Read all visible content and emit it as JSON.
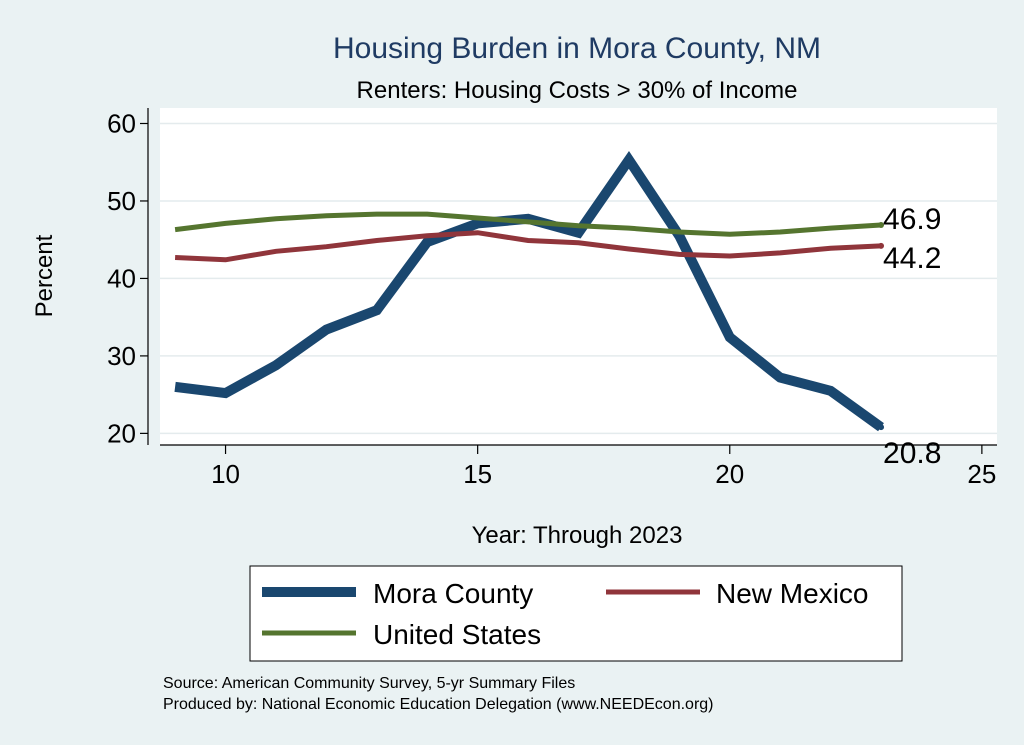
{
  "chart_data": {
    "type": "line",
    "title": "Housing Burden in Mora County, NM",
    "subtitle": "Renters: Housing Costs > 30% of Income",
    "xlabel": "Year: Through 2023",
    "ylabel": "Percent",
    "xlim": [
      8.7,
      25.3
    ],
    "ylim": [
      18.5,
      62
    ],
    "x_ticks": [
      10,
      15,
      20,
      25
    ],
    "y_ticks": [
      20,
      30,
      40,
      50,
      60
    ],
    "grid": true,
    "legend_position": "bottom",
    "x": [
      9,
      10,
      11,
      12,
      13,
      14,
      15,
      16,
      17,
      18,
      19,
      20,
      21,
      22,
      23
    ],
    "series": [
      {
        "name": "Mora County",
        "color": "#1a476f",
        "values": [
          26.0,
          25.2,
          28.8,
          33.4,
          35.9,
          44.7,
          47.1,
          47.7,
          45.9,
          55.3,
          45.5,
          32.4,
          27.2,
          25.5,
          20.8
        ],
        "end_label": "20.8"
      },
      {
        "name": "New Mexico",
        "color": "#90353b",
        "values": [
          42.7,
          42.4,
          43.5,
          44.1,
          44.9,
          45.5,
          45.9,
          44.9,
          44.6,
          43.8,
          43.1,
          42.9,
          43.3,
          43.9,
          44.2
        ],
        "end_label": "44.2"
      },
      {
        "name": "United States",
        "color": "#55752f",
        "values": [
          46.3,
          47.1,
          47.7,
          48.1,
          48.3,
          48.3,
          47.8,
          47.3,
          46.8,
          46.5,
          46.0,
          45.7,
          46.0,
          46.5,
          46.9
        ],
        "end_label": "46.9"
      }
    ],
    "notes": [
      "Source: American Community Survey, 5-yr Summary Files",
      "Produced by: National Economic Education Delegation (www.NEEDEcon.org)"
    ]
  }
}
